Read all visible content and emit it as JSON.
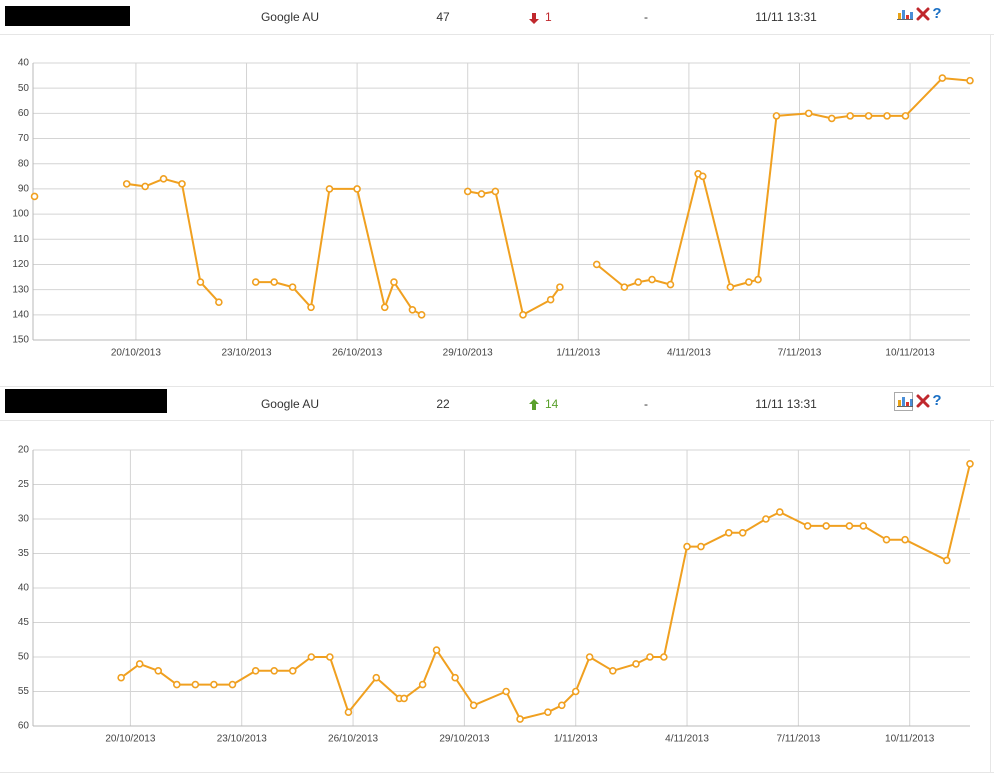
{
  "rows": [
    {
      "engine": "Google AU",
      "rank": 47,
      "change": 1,
      "change_direction": "down",
      "best": "-",
      "updated": "11/11 13:31"
    },
    {
      "engine": "Google AU",
      "rank": 22,
      "change": 14,
      "change_direction": "up",
      "best": "-",
      "updated": "11/11 13:31"
    }
  ],
  "chart_data": [
    {
      "type": "line",
      "color": "#f0a020",
      "grid": true,
      "y_inverted": true,
      "x": [
        "2013-10-17T06:00",
        "2013-10-18T12:00",
        "2013-10-19T18:00",
        "2013-10-20T06:00",
        "2013-10-20T18:00",
        "2013-10-21T06:00",
        "2013-10-21T18:00",
        "2013-10-22T06:00",
        "2013-10-22T18:00",
        "2013-10-23T06:00",
        "2013-10-23T18:00",
        "2013-10-24T06:00",
        "2013-10-24T18:00",
        "2013-10-25T06:00",
        "2013-10-26T00:00",
        "2013-10-26T18:00",
        "2013-10-27T00:00",
        "2013-10-27T12:00",
        "2013-10-27T18:00",
        "2013-10-28T12:00",
        "2013-10-29T00:00",
        "2013-10-29T09:00",
        "2013-10-29T18:00",
        "2013-10-30T12:00",
        "2013-10-31T06:00",
        "2013-10-31T12:00",
        "2013-11-01T00:00",
        "2013-11-01T12:00",
        "2013-11-02T06:00",
        "2013-11-02T15:00",
        "2013-11-03T00:00",
        "2013-11-03T12:00",
        "2013-11-04T06:00",
        "2013-11-04T09:00",
        "2013-11-05T03:00",
        "2013-11-05T15:00",
        "2013-11-05T21:00",
        "2013-11-06T09:00",
        "2013-11-07T06:00",
        "2013-11-07T21:00",
        "2013-11-08T09:00",
        "2013-11-08T21:00",
        "2013-11-09T09:00",
        "2013-11-09T21:00",
        "2013-11-10T21:00",
        "2013-11-11T15:00"
      ],
      "values": [
        93,
        null,
        88,
        89,
        86,
        88,
        127,
        135,
        null,
        127,
        127,
        129,
        137,
        90,
        90,
        137,
        127,
        138,
        140,
        null,
        91,
        92,
        91,
        140,
        134,
        129,
        null,
        120,
        129,
        127,
        126,
        128,
        84,
        85,
        129,
        127,
        126,
        61,
        60,
        62,
        61,
        61,
        61,
        61,
        46,
        47
      ],
      "xlim": [
        "2013-10-17T05:00",
        "2013-11-11T15:00"
      ],
      "xticks": [
        {
          "value": "2013-10-20",
          "label": "20/10/2013"
        },
        {
          "value": "2013-10-23",
          "label": "23/10/2013"
        },
        {
          "value": "2013-10-26",
          "label": "26/10/2013"
        },
        {
          "value": "2013-10-29",
          "label": "29/10/2013"
        },
        {
          "value": "2013-11-01",
          "label": "1/11/2013"
        },
        {
          "value": "2013-11-04",
          "label": "4/11/2013"
        },
        {
          "value": "2013-11-07",
          "label": "7/11/2013"
        },
        {
          "value": "2013-11-10",
          "label": "10/11/2013"
        }
      ],
      "ylim": [
        40,
        150
      ],
      "yticks": [
        40,
        50,
        60,
        70,
        80,
        90,
        100,
        110,
        120,
        130,
        140,
        150
      ]
    },
    {
      "type": "line",
      "color": "#f0a020",
      "grid": true,
      "y_inverted": true,
      "x": [
        "2013-10-19T18:00",
        "2013-10-20T06:00",
        "2013-10-20T18:00",
        "2013-10-21T06:00",
        "2013-10-21T18:00",
        "2013-10-22T06:00",
        "2013-10-22T18:00",
        "2013-10-23T09:00",
        "2013-10-23T21:00",
        "2013-10-24T09:00",
        "2013-10-24T21:00",
        "2013-10-25T09:00",
        "2013-10-25T21:00",
        "2013-10-26T15:00",
        "2013-10-27T06:00",
        "2013-10-27T09:00",
        "2013-10-27T21:00",
        "2013-10-28T06:00",
        "2013-10-28T18:00",
        "2013-10-29T06:00",
        "2013-10-30T03:00",
        "2013-10-30T12:00",
        "2013-10-31T06:00",
        "2013-10-31T15:00",
        "2013-11-01T00:00",
        "2013-11-01T09:00",
        "2013-11-02T00:00",
        "2013-11-02T15:00",
        "2013-11-03T00:00",
        "2013-11-03T09:00",
        "2013-11-04T00:00",
        "2013-11-04T09:00",
        "2013-11-05T03:00",
        "2013-11-05T12:00",
        "2013-11-06T03:00",
        "2013-11-06T12:00",
        "2013-11-07T06:00",
        "2013-11-07T18:00",
        "2013-11-08T09:00",
        "2013-11-08T18:00",
        "2013-11-09T09:00",
        "2013-11-09T21:00",
        "2013-11-11T00:00",
        "2013-11-11T15:00"
      ],
      "values": [
        53,
        51,
        52,
        54,
        54,
        54,
        54,
        52,
        52,
        52,
        50,
        50,
        58,
        53,
        56,
        56,
        54,
        49,
        53,
        57,
        55,
        59,
        58,
        57,
        55,
        50,
        52,
        51,
        50,
        50,
        34,
        34,
        32,
        32,
        30,
        29,
        31,
        31,
        31,
        31,
        33,
        33,
        36,
        22
      ],
      "xlim": [
        "2013-10-17T09:00",
        "2013-11-11T15:00"
      ],
      "xticks": [
        {
          "value": "2013-10-20",
          "label": "20/10/2013"
        },
        {
          "value": "2013-10-23",
          "label": "23/10/2013"
        },
        {
          "value": "2013-10-26",
          "label": "26/10/2013"
        },
        {
          "value": "2013-10-29",
          "label": "29/10/2013"
        },
        {
          "value": "2013-11-01",
          "label": "1/11/2013"
        },
        {
          "value": "2013-11-04",
          "label": "4/11/2013"
        },
        {
          "value": "2013-11-07",
          "label": "7/11/2013"
        },
        {
          "value": "2013-11-10",
          "label": "10/11/2013"
        }
      ],
      "ylim": [
        20,
        60
      ],
      "yticks": [
        20,
        25,
        30,
        35,
        40,
        45,
        50,
        55,
        60
      ]
    }
  ]
}
